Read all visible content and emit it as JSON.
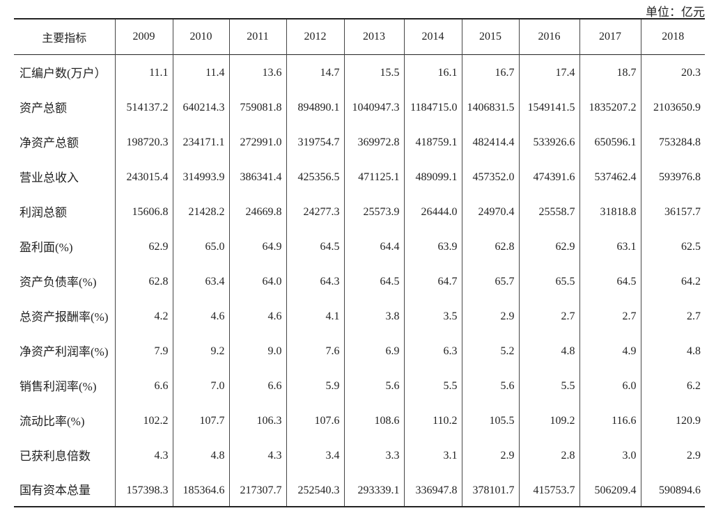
{
  "unit": "单位：亿元",
  "table": {
    "header": [
      "主要指标",
      "2009",
      "2010",
      "2011",
      "2012",
      "2013",
      "2014",
      "2015",
      "2016",
      "2017",
      "2018"
    ],
    "rows": [
      [
        "汇编户数(万户）",
        "11.1",
        "11.4",
        "13.6",
        "14.7",
        "15.5",
        "16.1",
        "16.7",
        "17.4",
        "18.7",
        "20.3"
      ],
      [
        "资产总额",
        "514137.2",
        "640214.3",
        "759081.8",
        "894890.1",
        "1040947.3",
        "1184715.0",
        "1406831.5",
        "1549141.5",
        "1835207.2",
        "2103650.9"
      ],
      [
        "净资产总额",
        "198720.3",
        "234171.1",
        "272991.0",
        "319754.7",
        "369972.8",
        "418759.1",
        "482414.4",
        "533926.6",
        "650596.1",
        "753284.8"
      ],
      [
        "营业总收入",
        "243015.4",
        "314993.9",
        "386341.4",
        "425356.5",
        "471125.1",
        "489099.1",
        "457352.0",
        "474391.6",
        "537462.4",
        "593976.8"
      ],
      [
        "利润总额",
        "15606.8",
        "21428.2",
        "24669.8",
        "24277.3",
        "25573.9",
        "26444.0",
        "24970.4",
        "25558.7",
        "31818.8",
        "36157.7"
      ],
      [
        "盈利面(%)",
        "62.9",
        "65.0",
        "64.9",
        "64.5",
        "64.4",
        "63.9",
        "62.8",
        "62.9",
        "63.1",
        "62.5"
      ],
      [
        "资产负债率(%)",
        "62.8",
        "63.4",
        "64.0",
        "64.3",
        "64.5",
        "64.7",
        "65.7",
        "65.5",
        "64.5",
        "64.2"
      ],
      [
        "总资产报酬率(%)",
        "4.2",
        "4.6",
        "4.6",
        "4.1",
        "3.8",
        "3.5",
        "2.9",
        "2.7",
        "2.7",
        "2.7"
      ],
      [
        "净资产利润率(%)",
        "7.9",
        "9.2",
        "9.0",
        "7.6",
        "6.9",
        "6.3",
        "5.2",
        "4.8",
        "4.9",
        "4.8"
      ],
      [
        "销售利润率(%)",
        "6.6",
        "7.0",
        "6.6",
        "5.9",
        "5.6",
        "5.5",
        "5.6",
        "5.5",
        "6.0",
        "6.2"
      ],
      [
        "流动比率(%)",
        "102.2",
        "107.7",
        "106.3",
        "107.6",
        "108.6",
        "110.2",
        "105.5",
        "109.2",
        "116.6",
        "120.9"
      ],
      [
        "已获利息倍数",
        "4.3",
        "4.8",
        "4.3",
        "3.4",
        "3.3",
        "3.1",
        "2.9",
        "2.8",
        "3.0",
        "2.9"
      ],
      [
        "国有资本总量",
        "157398.3",
        "185364.6",
        "217307.7",
        "252540.3",
        "293339.1",
        "336947.8",
        "378101.7",
        "415753.7",
        "506209.4",
        "590894.6"
      ]
    ]
  }
}
